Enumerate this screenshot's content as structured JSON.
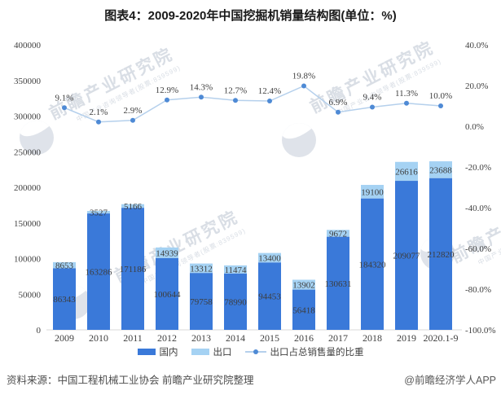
{
  "title": "图表4：2009-2020年中国挖掘机销量结构图(单位：%)",
  "source": {
    "left": "资料来源：中国工程机械工业协会 前瞻产业研究院整理",
    "right": "@前瞻经济学人APP"
  },
  "watermark": {
    "brand": "前瞻产业研究院",
    "sub": "中国产业咨询领导者(股票:839599)",
    "logo_icon": "qianzhan-swoosh-circle-icon"
  },
  "colors": {
    "domestic_bar": "#3A79D9",
    "export_bar": "#A5D2F3",
    "ratio_line": "#B5D0EC",
    "ratio_marker": "#4E8AD5",
    "label_text": "#3d3d3d",
    "tick_text": "#404040",
    "axis_line": "#d9d9d9"
  },
  "chart_data": {
    "type": "bar",
    "subtype": "stacked-bars-with-line",
    "title": "图表4：2009-2020年中国挖掘机销量结构图(单位：%)",
    "categories": [
      "2009",
      "2010",
      "2011",
      "2012",
      "2013",
      "2014",
      "2015",
      "2016",
      "2017",
      "2018",
      "2019",
      "2020.1-9"
    ],
    "series": [
      {
        "name": "国内",
        "type": "bar",
        "axis": "left",
        "color": "#3A79D9",
        "values": [
          86343,
          163286,
          171186,
          100644,
          79758,
          78990,
          94453,
          56418,
          130631,
          184320,
          209077,
          212820
        ]
      },
      {
        "name": "出口",
        "type": "bar",
        "axis": "left",
        "color": "#A5D2F3",
        "values": [
          8653,
          3527,
          5166,
          14939,
          13312,
          11474,
          13400,
          13902,
          9672,
          19100,
          26616,
          23688
        ]
      },
      {
        "name": "出口占总销售量的比重",
        "type": "line",
        "axis": "right",
        "unit": "%",
        "color": "#B5D0EC",
        "marker_color": "#4E8AD5",
        "values": [
          9.1,
          2.1,
          2.9,
          12.9,
          14.3,
          12.7,
          12.4,
          19.8,
          6.9,
          9.4,
          11.3,
          10.0
        ]
      }
    ],
    "stacked": true,
    "grid": false,
    "legend_position": "bottom",
    "left_axis": {
      "min": 0,
      "max": 400000,
      "step": 50000,
      "tick_labels": [
        "400000",
        "350000",
        "300000",
        "250000",
        "200000",
        "150000",
        "100000",
        "50000",
        "0"
      ]
    },
    "right_axis": {
      "min": -100,
      "max": 40,
      "step": 20,
      "tick_labels": [
        "40.0%",
        "20.0%",
        "0.0%",
        "-20.0%",
        "-40.0%",
        "-60.0%",
        "-80.0%",
        "-100.0%"
      ]
    }
  }
}
